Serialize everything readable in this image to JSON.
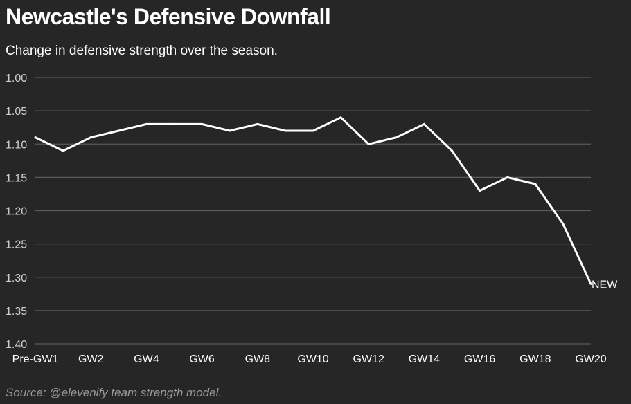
{
  "page": {
    "title": "Newcastle's Defensive Downfall",
    "subtitle": "Change in defensive strength over the season.",
    "source": "Source: @elevenify team strength model."
  },
  "colors": {
    "background": "#262626",
    "grid": "#5a5a5a",
    "line": "#ffffff",
    "text": "#ffffff",
    "muted": "#9a9a9a"
  },
  "chart_data": {
    "type": "line",
    "title": "Newcastle's Defensive Downfall",
    "subtitle": "Change in defensive strength over the season.",
    "xlabel": "",
    "ylabel": "",
    "y_axis_reversed": true,
    "ylim": [
      1.0,
      1.4
    ],
    "yticks": [
      1.0,
      1.05,
      1.1,
      1.15,
      1.2,
      1.25,
      1.3,
      1.35,
      1.4
    ],
    "ytick_labels": [
      "1.00",
      "1.05",
      "1.10",
      "1.15",
      "1.20",
      "1.25",
      "1.30",
      "1.35",
      "1.40"
    ],
    "grid": true,
    "x": [
      "Pre-GW1",
      "GW1",
      "GW2",
      "GW3",
      "GW4",
      "GW5",
      "GW6",
      "GW7",
      "GW8",
      "GW9",
      "GW10",
      "GW11",
      "GW12",
      "GW13",
      "GW14",
      "GW15",
      "GW16",
      "GW17",
      "GW18",
      "GW19",
      "GW20"
    ],
    "xtick_labels": [
      "Pre-GW1",
      "GW2",
      "GW4",
      "GW6",
      "GW8",
      "GW10",
      "GW12",
      "GW14",
      "GW16",
      "GW18",
      "GW20"
    ],
    "series": [
      {
        "name": "NEW",
        "values": [
          1.09,
          1.11,
          1.09,
          1.08,
          1.07,
          1.07,
          1.07,
          1.08,
          1.07,
          1.08,
          1.08,
          1.06,
          1.1,
          1.09,
          1.07,
          1.11,
          1.17,
          1.15,
          1.16,
          1.22,
          1.31
        ]
      }
    ]
  }
}
